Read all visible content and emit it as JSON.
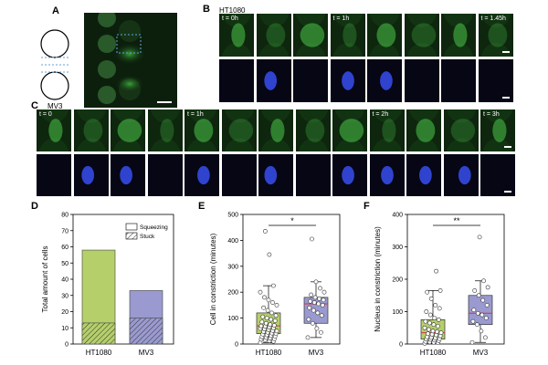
{
  "panels": {
    "A": {
      "letter": "A"
    },
    "B": {
      "letter": "B",
      "cell_line": "HT1080",
      "time_labels": [
        "t = 0h",
        "t = 1h",
        "t = 1.45h"
      ]
    },
    "C": {
      "letter": "C",
      "cell_line": "MV3",
      "time_labels": [
        "t = 0",
        "t = 1h",
        "t = 2h",
        "t = 3h"
      ]
    },
    "D": {
      "letter": "D"
    },
    "E": {
      "letter": "E"
    },
    "F": {
      "letter": "F"
    }
  },
  "colors": {
    "green_channel": "#3fa53f",
    "blue_channel": "#3347d8",
    "ht1080_fill": "#b5cf6b",
    "mv3_fill": "#9a9ad0",
    "median_line": "#d0304f"
  },
  "chart_data": [
    {
      "panel": "D",
      "type": "bar",
      "ylabel": "Total amount of cells",
      "categories": [
        "HT1080",
        "MV3"
      ],
      "ylim": [
        0,
        80
      ],
      "yticks": [
        0,
        10,
        20,
        30,
        40,
        50,
        60,
        70,
        80
      ],
      "series": [
        {
          "name": "Stuck",
          "values": [
            13,
            16
          ]
        },
        {
          "name": "Squeezing",
          "values": [
            45,
            17
          ]
        }
      ],
      "legend": [
        "Squeezing",
        "Stuck"
      ]
    },
    {
      "panel": "E",
      "type": "box",
      "ylabel": "Cell in constriction (minutes)",
      "categories": [
        "HT1080",
        "MV3"
      ],
      "ylim": [
        0,
        500
      ],
      "yticks": [
        0,
        100,
        200,
        300,
        400,
        500
      ],
      "significance": "*",
      "boxes": [
        {
          "name": "HT1080",
          "q1": 40,
          "median": 70,
          "q3": 120,
          "whisker_low": 5,
          "whisker_high": 225,
          "points": [
            5,
            10,
            12,
            15,
            18,
            20,
            22,
            25,
            28,
            30,
            32,
            35,
            38,
            40,
            42,
            45,
            48,
            50,
            52,
            55,
            58,
            60,
            62,
            65,
            68,
            70,
            72,
            75,
            80,
            85,
            90,
            95,
            100,
            105,
            110,
            120,
            130,
            140,
            150,
            160,
            170,
            180,
            200,
            225,
            345,
            435
          ]
        },
        {
          "name": "MV3",
          "q1": 80,
          "median": 155,
          "q3": 180,
          "whisker_low": 25,
          "whisker_high": 240,
          "points": [
            25,
            45,
            60,
            80,
            95,
            110,
            120,
            130,
            140,
            150,
            155,
            160,
            165,
            170,
            175,
            180,
            190,
            200,
            215,
            240,
            405
          ]
        }
      ]
    },
    {
      "panel": "F",
      "type": "box",
      "ylabel": "Nucleus in constriction (minutes)",
      "categories": [
        "HT1080",
        "MV3"
      ],
      "ylim": [
        0,
        400
      ],
      "yticks": [
        0,
        100,
        200,
        300,
        400
      ],
      "significance": "**",
      "boxes": [
        {
          "name": "HT1080",
          "q1": 15,
          "median": 35,
          "q3": 75,
          "whisker_low": 2,
          "whisker_high": 165,
          "points": [
            2,
            4,
            5,
            6,
            8,
            10,
            12,
            14,
            15,
            16,
            18,
            20,
            22,
            25,
            28,
            30,
            32,
            35,
            38,
            40,
            45,
            50,
            55,
            60,
            65,
            70,
            75,
            80,
            90,
            100,
            110,
            120,
            140,
            160,
            165,
            225
          ]
        },
        {
          "name": "MV3",
          "q1": 60,
          "median": 95,
          "q3": 150,
          "whisker_low": 5,
          "whisker_high": 195,
          "points": [
            5,
            20,
            40,
            60,
            70,
            80,
            90,
            95,
            105,
            120,
            135,
            150,
            165,
            175,
            195,
            330
          ]
        }
      ]
    }
  ]
}
